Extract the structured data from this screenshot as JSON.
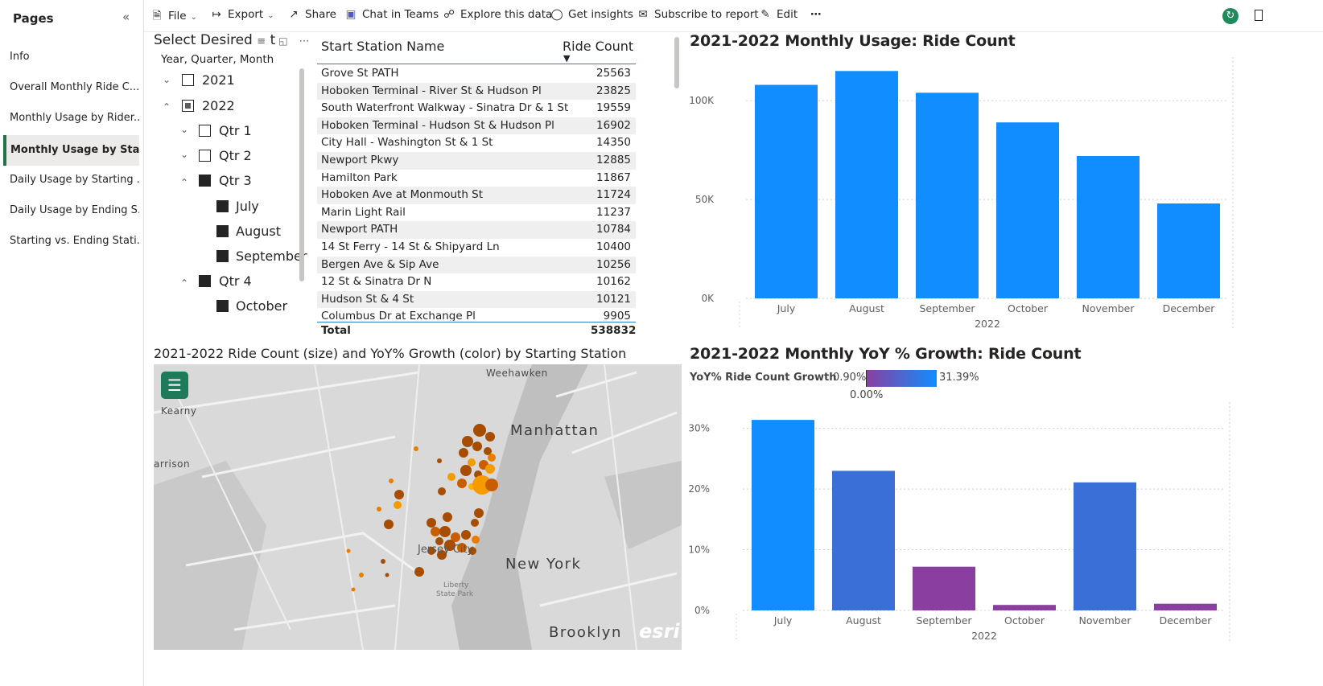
{
  "pages": {
    "header": "Pages",
    "items": [
      {
        "label": "Info"
      },
      {
        "label": "Overall Monthly Ride C..."
      },
      {
        "label": "Monthly Usage by Rider..."
      },
      {
        "label": "Monthly Usage by Star..."
      },
      {
        "label": "Daily Usage by Starting ..."
      },
      {
        "label": "Daily Usage by Ending S..."
      },
      {
        "label": "Starting vs. Ending Stati..."
      }
    ]
  },
  "toolbar": {
    "file": "File",
    "export": "Export",
    "share": "Share",
    "teams": "Chat in Teams",
    "explore": "Explore this data",
    "insights": "Get insights",
    "subscribe": "Subscribe to report",
    "edit": "Edit",
    "more": "⋯"
  },
  "slicer": {
    "title": "Select Desired",
    "title_tail": "t",
    "subtitle": "Year, Quarter, Month",
    "nodes": [
      {
        "label": "2021",
        "state": "unchecked",
        "expanded": false
      },
      {
        "label": "2022",
        "state": "partial",
        "expanded": true
      },
      {
        "label": "Qtr 1",
        "state": "unchecked",
        "expanded": false
      },
      {
        "label": "Qtr 2",
        "state": "unchecked",
        "expanded": false
      },
      {
        "label": "Qtr 3",
        "state": "checked",
        "expanded": true
      },
      {
        "label": "July",
        "state": "checked"
      },
      {
        "label": "August",
        "state": "checked"
      },
      {
        "label": "September",
        "state": "checked"
      },
      {
        "label": "Qtr 4",
        "state": "checked",
        "expanded": true
      },
      {
        "label": "October",
        "state": "checked"
      }
    ]
  },
  "table": {
    "col1": "Start Station Name",
    "col2": "Ride Count",
    "rows": [
      {
        "name": "Grove St PATH",
        "count": "25563"
      },
      {
        "name": "Hoboken Terminal - River St & Hudson Pl",
        "count": "23825"
      },
      {
        "name": "South Waterfront Walkway - Sinatra Dr & 1 St",
        "count": "19559"
      },
      {
        "name": "Hoboken Terminal - Hudson St & Hudson Pl",
        "count": "16902"
      },
      {
        "name": "City Hall - Washington St & 1 St",
        "count": "14350"
      },
      {
        "name": "Newport Pkwy",
        "count": "12885"
      },
      {
        "name": "Hamilton Park",
        "count": "11867"
      },
      {
        "name": "Hoboken Ave at Monmouth St",
        "count": "11724"
      },
      {
        "name": "Marin Light Rail",
        "count": "11237"
      },
      {
        "name": "Newport PATH",
        "count": "10784"
      },
      {
        "name": "14 St Ferry - 14 St & Shipyard Ln",
        "count": "10400"
      },
      {
        "name": "Bergen Ave & Sip Ave",
        "count": "10256"
      },
      {
        "name": "12 St & Sinatra Dr N",
        "count": "10162"
      },
      {
        "name": "Hudson St & 4 St",
        "count": "10121"
      },
      {
        "name": "Columbus Dr at Exchange Pl",
        "count": "9905"
      }
    ],
    "total_label": "Total",
    "total_value": "538832"
  },
  "map": {
    "title": "2021-2022 Ride Count (size) and YoY% Growth (color) by Starting Station",
    "labels": {
      "weehawken": "Weehawken",
      "kearny": "Kearny",
      "harrison": "arrison",
      "manhattan": "Manhattan",
      "jersey_city": "Jersey City",
      "new_york": "New York",
      "liberty": "Liberty",
      "state_park": "State Park",
      "brooklyn": "Brooklyn",
      "esri": "esri"
    }
  },
  "chart_data": [
    {
      "type": "bar",
      "title": "2021-2022 Monthly Usage: Ride Count",
      "categories": [
        "July",
        "August",
        "September",
        "October",
        "November",
        "December"
      ],
      "values": [
        108000,
        115000,
        104000,
        89000,
        72000,
        48000
      ],
      "xlabel": "2022",
      "ylabel": "",
      "ylim": [
        0,
        120000
      ],
      "yticks": [
        "0K",
        "50K",
        "100K"
      ],
      "colors": [
        "#118dff",
        "#118dff",
        "#118dff",
        "#118dff",
        "#118dff",
        "#118dff"
      ]
    },
    {
      "type": "bar",
      "title": "2021-2022 Monthly YoY % Growth: Ride Count",
      "categories": [
        "July",
        "August",
        "September",
        "October",
        "November",
        "December"
      ],
      "values": [
        31.39,
        23,
        7.2,
        0.9,
        21.1,
        1.1
      ],
      "xlabel": "2022",
      "ylabel": "",
      "ylim": [
        0,
        33
      ],
      "yticks": [
        "0%",
        "10%",
        "20%",
        "30%"
      ],
      "colors": [
        "#118dff",
        "#3b6fd8",
        "#8a3fa0",
        "#8a3fa0",
        "#3b6fd8",
        "#8a3fa0"
      ],
      "legend": {
        "label": "YoY% Ride Count Growth",
        "min": "0.90%",
        "mid": "0.00%",
        "max": "31.39%",
        "from_color": "#8a3fa0",
        "to_color": "#118dff"
      }
    }
  ]
}
